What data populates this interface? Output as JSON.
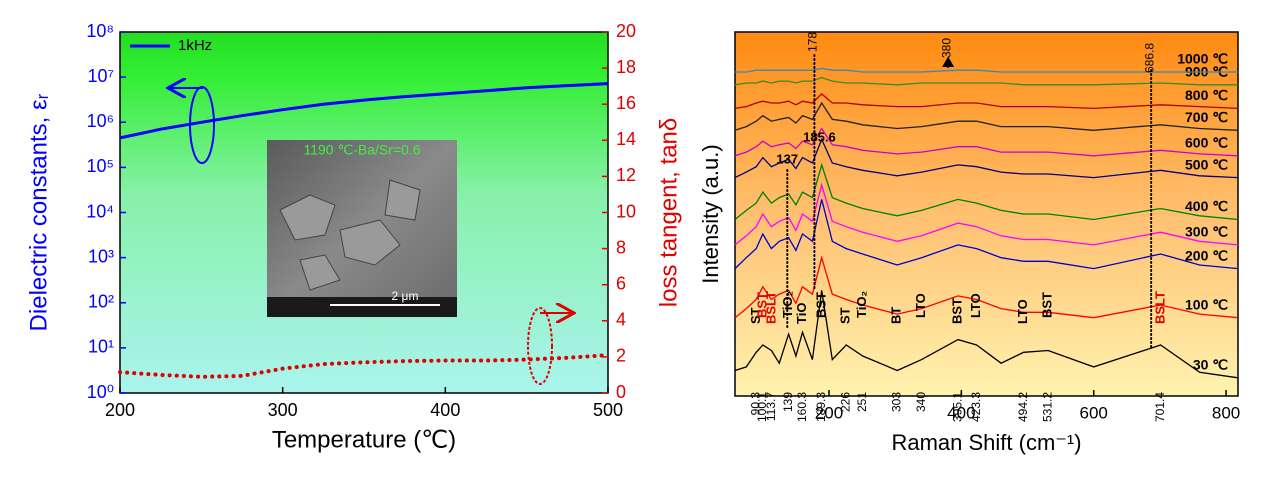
{
  "chart_data": [
    {
      "type": "line",
      "x_label": "Temperature (℃)",
      "y_label": "Dielectric constants, εᵣ",
      "y2_label": "loss tangent, tanδ",
      "x": [
        200,
        225,
        250,
        275,
        300,
        325,
        350,
        375,
        400,
        425,
        450,
        475,
        500
      ],
      "xlim": [
        200,
        500
      ],
      "xticks": [
        200,
        300,
        400,
        500
      ],
      "y_scale": "log",
      "ylim": [
        1,
        100000000
      ],
      "yticks": [
        {
          "value": 1,
          "label": "10⁰"
        },
        {
          "value": 10,
          "label": "10¹"
        },
        {
          "value": 100,
          "label": "10²"
        },
        {
          "value": 1000,
          "label": "10³"
        },
        {
          "value": 10000,
          "label": "10⁴"
        },
        {
          "value": 100000,
          "label": "10⁵"
        },
        {
          "value": 1000000,
          "label": "10⁶"
        },
        {
          "value": 10000000,
          "label": "10⁷"
        },
        {
          "value": 100000000,
          "label": "10⁸"
        }
      ],
      "y2lim": [
        0,
        20
      ],
      "y2ticks": [
        0,
        2,
        4,
        6,
        8,
        10,
        12,
        14,
        16,
        18,
        20
      ],
      "legend": "upper left",
      "series": [
        {
          "name": "1kHz",
          "color": "#0000ff",
          "values": [
            450000,
            700000,
            1000000,
            1400000,
            1900000,
            2500000,
            3100000,
            3700000,
            4300000,
            5000000,
            5800000,
            6500000,
            7200000
          ]
        },
        {
          "color": "#e00000",
          "axis": "y2",
          "style": "dotted",
          "values": [
            1.15,
            1.0,
            0.9,
            0.95,
            1.35,
            1.6,
            1.7,
            1.77,
            1.8,
            1.8,
            1.85,
            1.95,
            2.1
          ]
        }
      ],
      "inset": {
        "caption": "1190 ℃-Ba/Sr=0.6",
        "scale_bar": "2 μm"
      }
    },
    {
      "type": "line",
      "x_label": "Raman Shift (cm⁻¹)",
      "y_label": "Intensity (a.u.)",
      "x": [
        58,
        75,
        90,
        100,
        113,
        125,
        139,
        150,
        160,
        175,
        189,
        205,
        226,
        251,
        303,
        340,
        395,
        423,
        460,
        494,
        531,
        600,
        701,
        760,
        818
      ],
      "xlim": [
        58,
        818
      ],
      "xticks": [
        200,
        400,
        600,
        800
      ],
      "ylim": [
        0,
        20
      ],
      "legend": "right",
      "series": [
        {
          "name": "30 ℃",
          "color": "#000000",
          "values": [
            1.4,
            1.6,
            2.4,
            2.8,
            2.5,
            1.8,
            3.4,
            2.2,
            3.5,
            2.0,
            5.8,
            2.0,
            2.8,
            2.2,
            1.4,
            2.0,
            3.1,
            2.8,
            1.8,
            2.4,
            2.5,
            1.6,
            2.8,
            1.3,
            1.0
          ]
        },
        {
          "name": "100 ℃",
          "color": "#ff0000",
          "values": [
            4.3,
            4.8,
            5.3,
            6.0,
            5.3,
            5.6,
            5.8,
            5.1,
            6.0,
            5.6,
            7.6,
            5.6,
            5.3,
            5.0,
            4.5,
            4.8,
            5.5,
            5.3,
            4.8,
            4.6,
            4.6,
            4.3,
            5.0,
            4.5,
            4.3
          ]
        },
        {
          "name": "200 ℃",
          "color": "#0000cc",
          "values": [
            7.0,
            7.6,
            8.1,
            8.9,
            8.1,
            8.5,
            8.7,
            8.0,
            8.9,
            8.5,
            10.8,
            8.5,
            8.1,
            7.8,
            7.2,
            7.6,
            8.3,
            8.1,
            7.6,
            7.4,
            7.4,
            7.0,
            7.8,
            7.2,
            7.0
          ]
        },
        {
          "name": "300 ℃",
          "color": "#ff00ff",
          "values": [
            8.3,
            8.8,
            9.3,
            10.0,
            9.3,
            9.6,
            9.8,
            9.1,
            10.0,
            9.6,
            11.6,
            9.6,
            9.3,
            9.0,
            8.5,
            8.8,
            9.5,
            9.3,
            8.8,
            8.6,
            8.6,
            8.3,
            9.0,
            8.5,
            8.3
          ]
        },
        {
          "name": "400 ℃",
          "color": "#008000",
          "values": [
            9.7,
            10.2,
            10.6,
            11.2,
            10.6,
            10.9,
            11.1,
            10.5,
            11.2,
            10.9,
            12.7,
            10.9,
            10.6,
            10.3,
            9.9,
            10.2,
            10.8,
            10.6,
            10.2,
            10.0,
            10.0,
            9.7,
            10.3,
            9.9,
            9.7
          ]
        },
        {
          "name": "500 ℃",
          "color": "#000080",
          "values": [
            12.0,
            12.3,
            12.6,
            13.1,
            12.6,
            12.8,
            13.0,
            12.5,
            13.1,
            12.8,
            14.1,
            12.8,
            12.6,
            12.4,
            12.1,
            12.3,
            12.7,
            12.6,
            12.3,
            12.2,
            12.2,
            12.0,
            12.4,
            12.1,
            12.0
          ]
        },
        {
          "name": "600 ℃",
          "color": "#cc00cc",
          "values": [
            13.2,
            13.4,
            13.7,
            14.0,
            13.7,
            13.8,
            13.9,
            13.6,
            14.0,
            13.8,
            14.7,
            13.8,
            13.7,
            13.5,
            13.3,
            13.4,
            13.7,
            13.7,
            13.4,
            13.4,
            13.4,
            13.2,
            13.5,
            13.3,
            13.2
          ]
        },
        {
          "name": "700 ℃",
          "color": "#222222",
          "values": [
            14.6,
            14.8,
            15.1,
            15.4,
            15.1,
            15.2,
            15.3,
            15.0,
            15.4,
            15.2,
            16.1,
            15.2,
            15.1,
            14.9,
            14.7,
            14.8,
            15.1,
            15.1,
            14.8,
            14.8,
            14.8,
            14.6,
            14.9,
            14.7,
            14.6
          ]
        },
        {
          "name": "800 ℃",
          "color": "#b00000",
          "values": [
            15.8,
            15.9,
            16.1,
            16.2,
            16.1,
            16.1,
            16.2,
            16.0,
            16.2,
            16.1,
            16.6,
            16.1,
            16.1,
            16.0,
            15.9,
            15.9,
            16.1,
            16.1,
            15.9,
            15.9,
            15.9,
            15.8,
            16.0,
            15.9,
            15.8
          ]
        },
        {
          "name": "900 ℃",
          "color": "#3a8a2a",
          "values": [
            17.1,
            17.2,
            17.2,
            17.3,
            17.2,
            17.3,
            17.3,
            17.2,
            17.3,
            17.3,
            17.5,
            17.3,
            17.2,
            17.2,
            17.1,
            17.2,
            17.2,
            17.2,
            17.2,
            17.1,
            17.1,
            17.1,
            17.2,
            17.1,
            17.1
          ]
        },
        {
          "name": "1000 ℃",
          "color": "#3a88bb",
          "values": [
            17.8,
            17.8,
            17.9,
            17.9,
            17.9,
            17.9,
            17.9,
            17.9,
            17.9,
            17.9,
            18.0,
            17.9,
            17.9,
            17.8,
            17.8,
            17.8,
            17.9,
            17.9,
            17.8,
            17.8,
            17.8,
            17.8,
            17.8,
            17.8,
            17.8
          ]
        }
      ],
      "peak_positions": [
        90.3,
        100.1,
        113.7,
        139,
        160.3,
        189.3,
        226,
        251,
        303,
        340,
        395.1,
        423.3,
        494.2,
        531.2,
        701.4
      ],
      "peak_assignments": [
        "ST",
        "BST",
        "BSLT",
        "TiO₂",
        "TiO",
        "BST",
        "ST",
        "TiO₂",
        "BT",
        "LTO",
        "BST",
        "LTO",
        "LTO",
        "BST",
        "BSLT"
      ],
      "assignment_colors": [
        "#000000",
        "#e00000",
        "#e00000",
        "#000000",
        "#000000",
        "#000000",
        "#000000",
        "#000000",
        "#000000",
        "#000000",
        "#000000",
        "#000000",
        "#000000",
        "#000000",
        "#e00000"
      ],
      "marked_peaks": [
        137,
        178,
        185.6,
        380,
        686.8
      ]
    }
  ]
}
